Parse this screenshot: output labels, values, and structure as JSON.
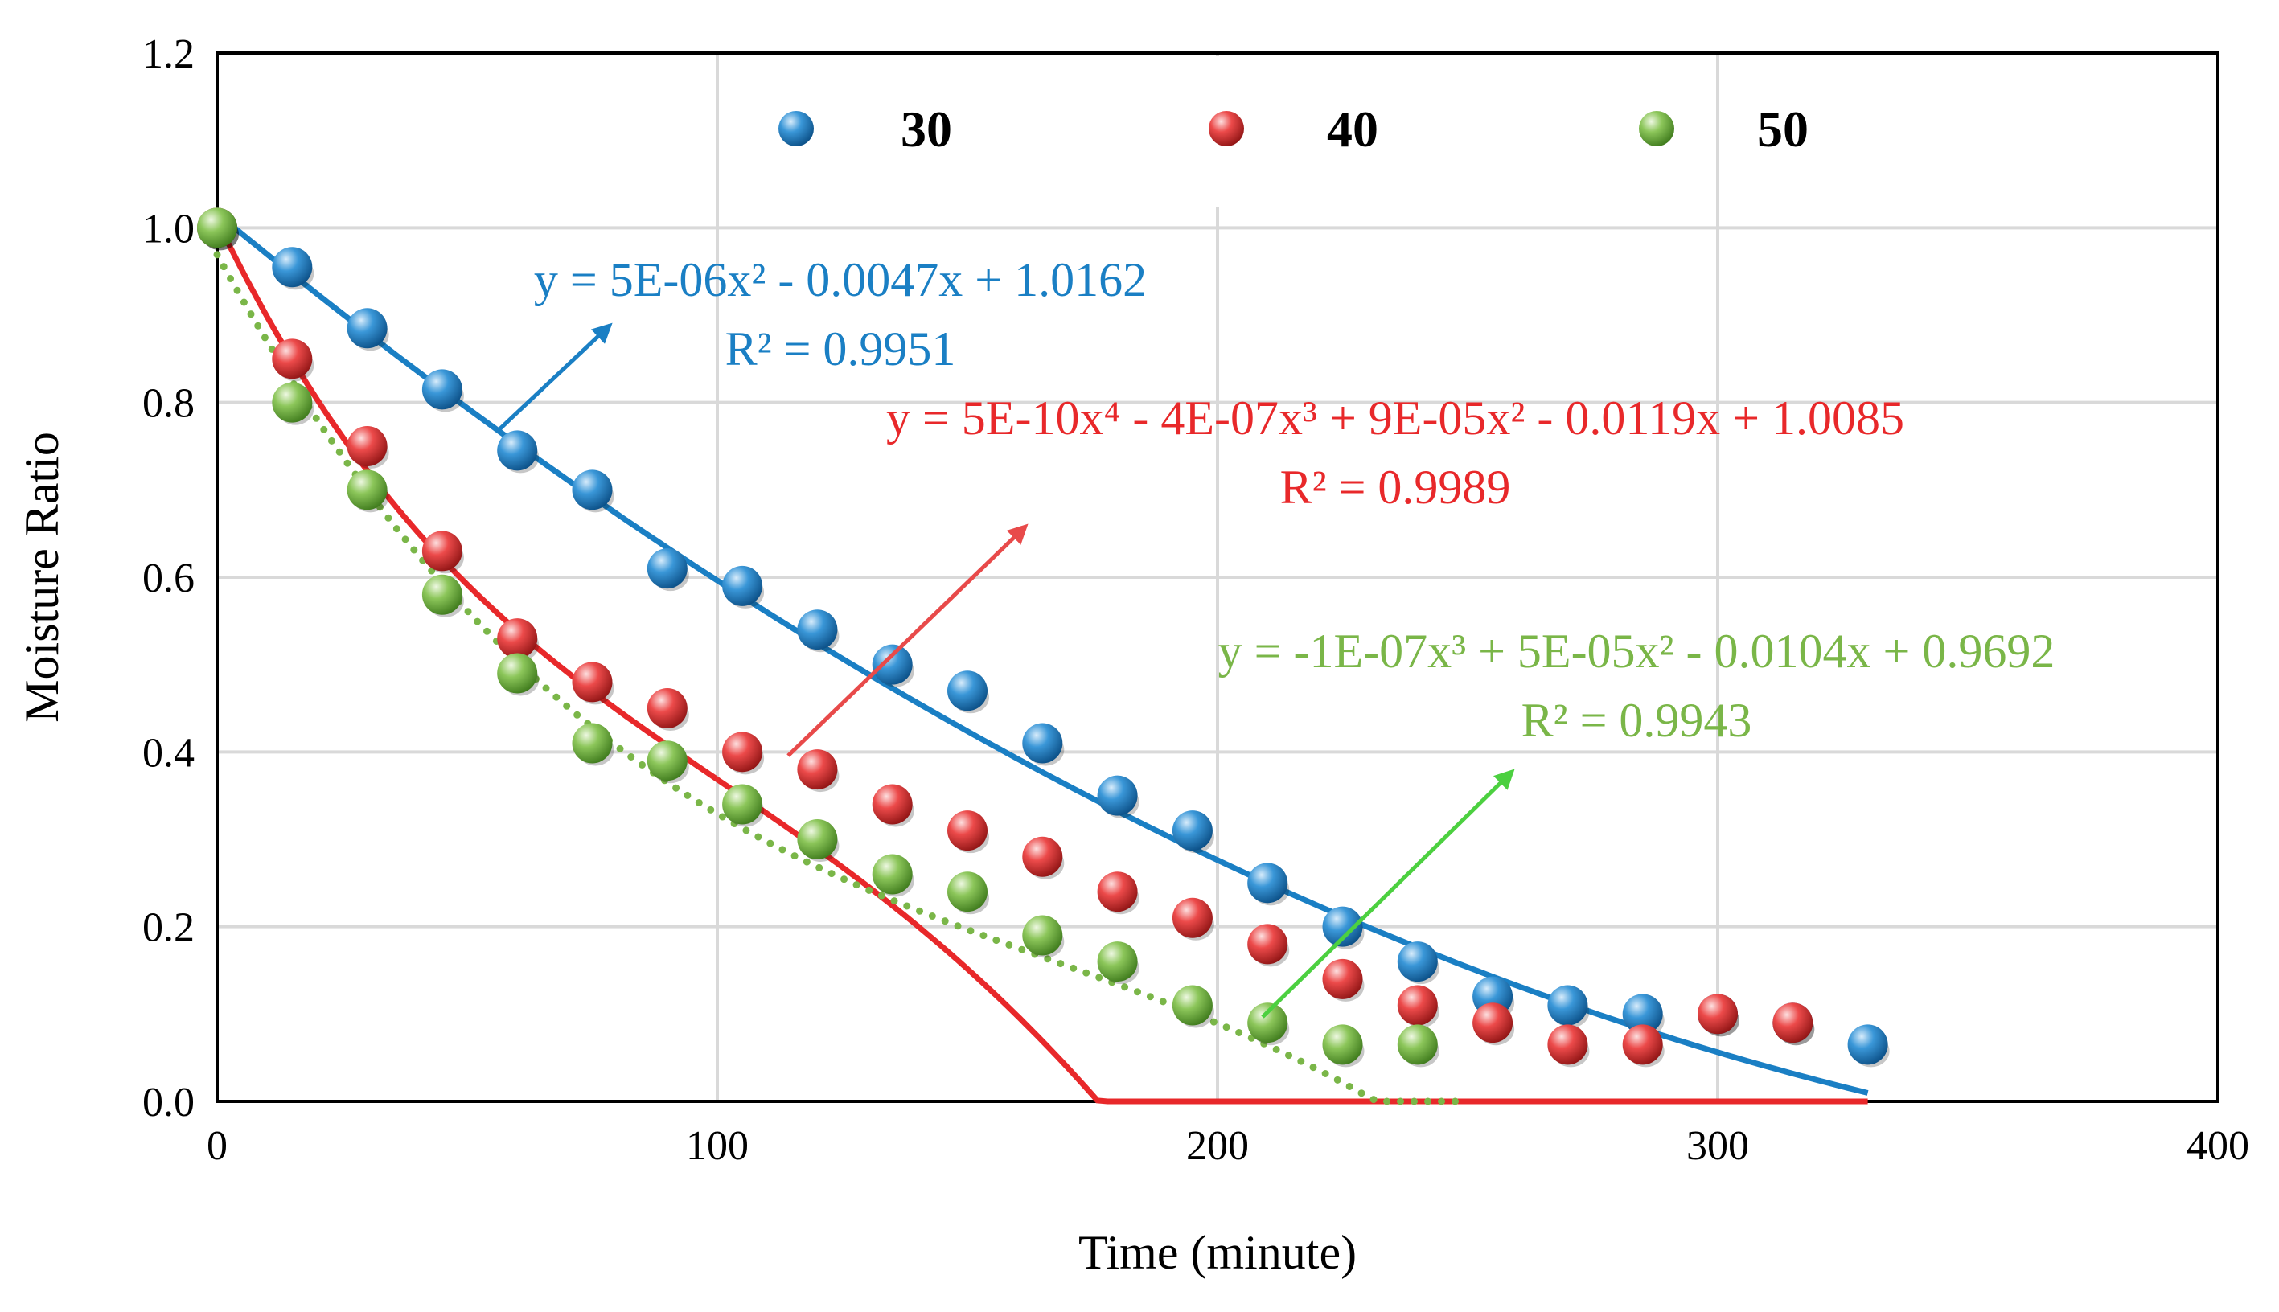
{
  "chart_data": {
    "type": "scatter",
    "title": "",
    "xlabel": "Time (minute)",
    "ylabel": "Moisture Ratio",
    "xlim": [
      0,
      400
    ],
    "ylim": [
      0,
      1.2
    ],
    "x_ticks": [
      0,
      100,
      200,
      300,
      400
    ],
    "y_ticks": [
      0.0,
      0.2,
      0.4,
      0.6,
      0.8,
      1.0,
      1.2
    ],
    "x_tick_labels": [
      "0",
      "100",
      "200",
      "300",
      "400"
    ],
    "y_tick_labels": [
      "0.0",
      "0.2",
      "0.4",
      "0.6",
      "0.8",
      "1.0",
      "1.2"
    ],
    "grid": true,
    "legend_position": "top-center",
    "series": [
      {
        "name": "30",
        "color": "#1a7fc4",
        "x": [
          0,
          15,
          30,
          45,
          60,
          75,
          90,
          105,
          120,
          135,
          150,
          165,
          180,
          195,
          210,
          225,
          240,
          255,
          270,
          285,
          300,
          315,
          330
        ],
        "values": [
          1.0,
          0.955,
          0.885,
          0.815,
          0.745,
          0.7,
          0.61,
          0.59,
          0.54,
          0.5,
          0.47,
          0.41,
          0.35,
          0.31,
          0.25,
          0.2,
          0.16,
          0.12,
          0.11,
          0.1,
          0.1,
          0.09,
          0.065
        ],
        "trend": {
          "type": "poly",
          "coefficients": [
            1.0162,
            -0.0047,
            5e-06
          ],
          "x_range": [
            0,
            330
          ],
          "style": "solid",
          "equation": "y = 5E-06x² - 0.0047x + 1.0162",
          "r2": "R² = 0.9951"
        }
      },
      {
        "name": "40",
        "color": "#e8282a",
        "x": [
          0,
          15,
          30,
          45,
          60,
          75,
          90,
          105,
          120,
          135,
          150,
          165,
          180,
          195,
          210,
          225,
          240,
          255,
          270,
          285,
          300,
          315
        ],
        "values": [
          1.0,
          0.85,
          0.75,
          0.63,
          0.53,
          0.48,
          0.45,
          0.4,
          0.38,
          0.34,
          0.31,
          0.28,
          0.24,
          0.21,
          0.18,
          0.14,
          0.11,
          0.09,
          0.065,
          0.065,
          0.1,
          0.09
        ],
        "trend": {
          "type": "poly",
          "coefficients": [
            1.0085,
            -0.0119,
            9e-05,
            -4e-07,
            5e-10
          ],
          "x_range": [
            0,
            330
          ],
          "style": "solid",
          "equation": "y = 5E-10x⁴ - 4E-07x³ + 9E-05x² - 0.0119x + 1.0085",
          "r2": "R² = 0.9989"
        }
      },
      {
        "name": "50",
        "color": "#7ab648",
        "x": [
          0,
          15,
          30,
          45,
          60,
          75,
          90,
          105,
          120,
          135,
          150,
          165,
          180,
          195,
          210,
          225,
          240
        ],
        "values": [
          1.0,
          0.8,
          0.7,
          0.58,
          0.49,
          0.41,
          0.39,
          0.34,
          0.3,
          0.26,
          0.24,
          0.19,
          0.16,
          0.11,
          0.09,
          0.065,
          0.065
        ],
        "trend": {
          "type": "poly",
          "coefficients": [
            0.9692,
            -0.0104,
            5e-05,
            -1e-07
          ],
          "x_range": [
            0,
            248
          ],
          "style": "dotted",
          "equation": "y = -1E-07x³ + 5E-05x² - 0.0104x + 0.9692",
          "r2": "R² = 0.9943"
        }
      }
    ],
    "annotations": {
      "arrow_colors": [
        "#1a7fc4",
        "#e84a4a",
        "#4cd040"
      ]
    }
  }
}
